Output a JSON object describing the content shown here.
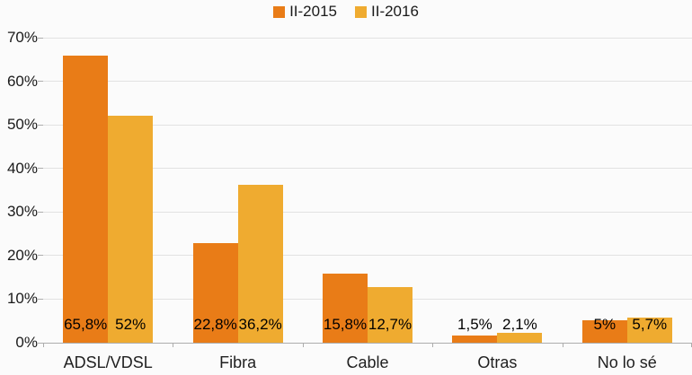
{
  "chart_data": {
    "type": "bar",
    "title": "",
    "xlabel": "",
    "ylabel": "",
    "categories": [
      "ADSL/VDSL",
      "Fibra",
      "Cable",
      "Otras",
      "No lo sé"
    ],
    "series": [
      {
        "name": "II-2015",
        "color": "#E97C17",
        "values": [
          65.8,
          22.8,
          15.8,
          1.5,
          5
        ],
        "labels": [
          "65,8%",
          "22,8%",
          "15,8%",
          "1,5%",
          "5%"
        ]
      },
      {
        "name": "II-2016",
        "color": "#EFAB30",
        "values": [
          52,
          36.2,
          12.7,
          2.1,
          5.7
        ],
        "labels": [
          "52%",
          "36,2%",
          "12,7%",
          "2,1%",
          "5,7%"
        ]
      }
    ],
    "ylim": [
      0,
      70
    ],
    "yticks": [
      {
        "value": 70,
        "label": "70%"
      },
      {
        "value": 60,
        "label": "60%"
      },
      {
        "value": 50,
        "label": "50%"
      },
      {
        "value": 40,
        "label": "40%"
      },
      {
        "value": 30,
        "label": "30%"
      },
      {
        "value": 20,
        "label": "20%"
      },
      {
        "value": 10,
        "label": "10%"
      },
      {
        "value": 0,
        "label": "0%"
      }
    ],
    "grid": true,
    "legend_position": "top"
  }
}
